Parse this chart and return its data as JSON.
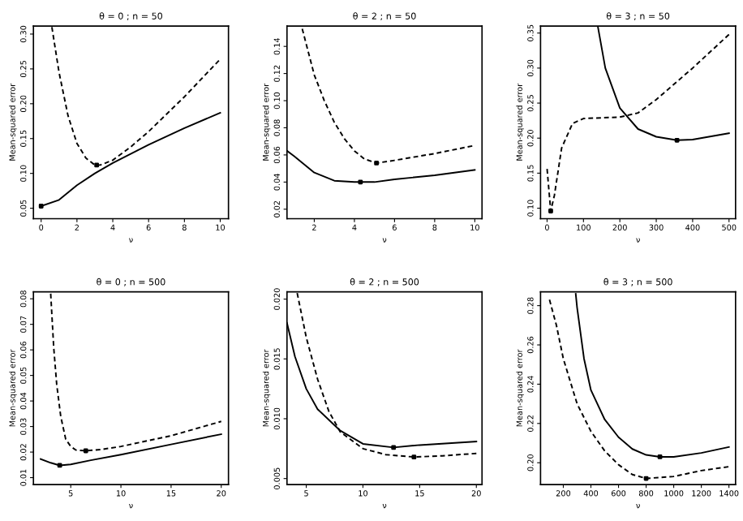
{
  "chart_data": [
    {
      "type": "line",
      "title": "θ = 0 ; n = 50",
      "xlabel": "ν",
      "ylabel": "Mean-squared error",
      "xlim": [
        -0.43,
        10.46
      ],
      "ylim": [
        0.035,
        0.3115
      ],
      "xticks": [
        0,
        2,
        4,
        6,
        8,
        10
      ],
      "yticks": [
        {
          "value": 0.05,
          "label": "0.05"
        },
        {
          "value": 0.1,
          "label": "0.10"
        },
        {
          "value": 0.15,
          "label": "0.15"
        },
        {
          "value": 0.2,
          "label": "0.20"
        },
        {
          "value": 0.25,
          "label": "0.25"
        },
        {
          "value": 0.3,
          "label": "0.30"
        }
      ],
      "grid": false,
      "series": [
        {
          "x": [
            0,
            1,
            2,
            3,
            4,
            6,
            8,
            10
          ],
          "values": [
            0.053,
            0.062,
            0.083,
            0.1,
            0.115,
            0.141,
            0.165,
            0.187
          ],
          "color": "#000000",
          "line_style": "solid"
        },
        {
          "x": [
            0.6,
            1,
            1.5,
            2,
            2.5,
            3,
            3.3,
            4,
            5,
            6,
            8,
            10
          ],
          "values": [
            0.31,
            0.245,
            0.183,
            0.143,
            0.122,
            0.112,
            0.112,
            0.119,
            0.138,
            0.16,
            0.21,
            0.264
          ],
          "color": "#000000",
          "line_style": "dashed"
        },
        {
          "type": "scatter",
          "x": [
            0,
            3.1
          ],
          "values": [
            0.053,
            0.112
          ],
          "color": "#000000",
          "marker": "square"
        }
      ]
    },
    {
      "type": "line",
      "title": "θ = 2 ; n = 50",
      "xlabel": "ν",
      "ylabel": "Mean-squared error",
      "xlim": [
        0.64,
        10.36
      ],
      "ylim": [
        0.013,
        0.155
      ],
      "xticks": [
        2,
        4,
        6,
        8,
        10
      ],
      "yticks": [
        0.02,
        0.04,
        0.06,
        0.08,
        {
          "value": 0.1,
          "label": "0.10"
        },
        0.12,
        0.14
      ],
      "grid": false,
      "series": [
        {
          "x": [
            0.64,
            1,
            2,
            3,
            4,
            5,
            6,
            8,
            10
          ],
          "values": [
            0.063,
            0.059,
            0.047,
            0.041,
            0.04,
            0.04,
            0.042,
            0.045,
            0.049
          ],
          "color": "#000000",
          "line_style": "solid"
        },
        {
          "x": [
            1.4,
            2,
            2.5,
            3,
            3.5,
            4,
            4.5,
            5.1,
            6,
            8,
            10
          ],
          "values": [
            0.153,
            0.119,
            0.1,
            0.084,
            0.072,
            0.063,
            0.057,
            0.054,
            0.056,
            0.061,
            0.067
          ],
          "color": "#000000",
          "line_style": "dashed"
        },
        {
          "type": "scatter",
          "x": [
            4.3,
            5.1
          ],
          "values": [
            0.04,
            0.054
          ],
          "color": "#000000",
          "marker": "square"
        }
      ]
    },
    {
      "type": "line",
      "title": "θ = 3 ; n = 50",
      "xlabel": "ν",
      "ylabel": "Mean-squared error",
      "xlim": [
        -18,
        518
      ],
      "ylim": [
        0.085,
        0.36
      ],
      "xticks": [
        0,
        100,
        200,
        300,
        400,
        500
      ],
      "yticks": [
        {
          "value": 0.1,
          "label": "0.10"
        },
        0.15,
        {
          "value": 0.2,
          "label": "0.20"
        },
        0.25,
        {
          "value": 0.3,
          "label": "0.30"
        },
        0.35
      ],
      "grid": false,
      "series": [
        {
          "x": [
            140,
            160,
            200,
            250,
            300,
            357,
            400,
            500
          ],
          "values": [
            0.358,
            0.3,
            0.243,
            0.213,
            0.202,
            0.197,
            0.198,
            0.207
          ],
          "color": "#000000",
          "line_style": "solid"
        },
        {
          "x": [
            0,
            10,
            20,
            40,
            70,
            100,
            200,
            250,
            300,
            400,
            500
          ],
          "values": [
            0.156,
            0.096,
            0.118,
            0.186,
            0.221,
            0.228,
            0.23,
            0.236,
            0.255,
            0.3,
            0.348
          ],
          "color": "#000000",
          "line_style": "dashed"
        },
        {
          "type": "scatter",
          "x": [
            357,
            10
          ],
          "values": [
            0.197,
            0.096
          ],
          "color": "#000000",
          "marker": "square"
        }
      ]
    },
    {
      "type": "line",
      "title": "θ = 0 ; n = 500",
      "xlabel": "ν",
      "ylabel": "Mean-squared error",
      "xlim": [
        1.28,
        20.72
      ],
      "ylim": [
        0.0073,
        0.0827
      ],
      "xticks": [
        5,
        10,
        15,
        20
      ],
      "yticks": [
        0.01,
        0.02,
        0.03,
        0.04,
        0.05,
        0.06,
        0.07,
        0.08
      ],
      "grid": false,
      "series": [
        {
          "x": [
            2,
            3,
            3.9,
            5,
            7,
            10,
            15,
            20
          ],
          "values": [
            0.0173,
            0.0158,
            0.0148,
            0.0152,
            0.0168,
            0.019,
            0.023,
            0.027
          ],
          "color": "#000000",
          "line_style": "solid"
        },
        {
          "x": [
            3,
            3.3,
            3.6,
            4,
            4.5,
            5,
            5.5,
            6.5,
            8,
            10,
            15,
            20
          ],
          "values": [
            0.082,
            0.061,
            0.0465,
            0.034,
            0.025,
            0.0222,
            0.0208,
            0.0205,
            0.021,
            0.0222,
            0.0264,
            0.032
          ],
          "color": "#000000",
          "line_style": "dashed"
        },
        {
          "type": "scatter",
          "x": [
            3.9,
            6.5
          ],
          "values": [
            0.0148,
            0.0205
          ],
          "color": "#000000",
          "marker": "square"
        }
      ]
    },
    {
      "type": "line",
      "title": "θ = 2 ; n = 500",
      "xlabel": "ν",
      "ylabel": "Mean-squared error",
      "xlim": [
        3.3,
        20.5
      ],
      "ylim": [
        0.0045,
        0.0206
      ],
      "xticks": [
        5,
        10,
        15,
        20
      ],
      "yticks": [
        0.005,
        {
          "value": 0.01,
          "label": "0.010"
        },
        0.015,
        {
          "value": 0.02,
          "label": "0.020"
        }
      ],
      "grid": false,
      "series": [
        {
          "x": [
            3.3,
            4,
            5,
            6,
            8,
            10,
            12.7,
            15,
            20
          ],
          "values": [
            0.018,
            0.0152,
            0.0125,
            0.0108,
            0.009,
            0.0079,
            0.0076,
            0.0078,
            0.0081
          ],
          "color": "#000000",
          "line_style": "solid"
        },
        {
          "x": [
            4.2,
            5,
            6,
            7,
            8,
            10,
            12,
            14.5,
            17,
            20
          ],
          "values": [
            0.0205,
            0.0168,
            0.0133,
            0.0106,
            0.0089,
            0.0075,
            0.007,
            0.0068,
            0.0069,
            0.0071
          ],
          "color": "#000000",
          "line_style": "dashed"
        },
        {
          "type": "scatter",
          "x": [
            12.7,
            14.5
          ],
          "values": [
            0.0076,
            0.0068
          ],
          "color": "#000000",
          "marker": "square"
        }
      ]
    },
    {
      "type": "line",
      "title": "θ = 3 ; n = 500",
      "xlabel": "ν",
      "ylabel": "Mean-squared error",
      "xlim": [
        35,
        1448
      ],
      "ylim": [
        0.1889,
        0.287
      ],
      "xticks": [
        200,
        400,
        600,
        800,
        1000,
        1200,
        1400
      ],
      "yticks": [
        {
          "value": 0.2,
          "label": "0.20"
        },
        0.22,
        0.24,
        0.26,
        0.28
      ],
      "grid": false,
      "series": [
        {
          "x": [
            290,
            300,
            350,
            400,
            500,
            600,
            700,
            800,
            900,
            1000,
            1200,
            1400
          ],
          "values": [
            0.286,
            0.279,
            0.253,
            0.237,
            0.222,
            0.213,
            0.207,
            0.204,
            0.203,
            0.203,
            0.205,
            0.208
          ],
          "color": "#000000",
          "line_style": "solid"
        },
        {
          "x": [
            100,
            150,
            200,
            300,
            400,
            500,
            600,
            700,
            800,
            1000,
            1200,
            1400
          ],
          "values": [
            0.283,
            0.27,
            0.253,
            0.23,
            0.216,
            0.206,
            0.199,
            0.194,
            0.192,
            0.193,
            0.196,
            0.198
          ],
          "color": "#000000",
          "line_style": "dashed"
        },
        {
          "type": "scatter",
          "x": [
            900,
            800
          ],
          "values": [
            0.203,
            0.192
          ],
          "color": "#000000",
          "marker": "square"
        }
      ]
    }
  ]
}
